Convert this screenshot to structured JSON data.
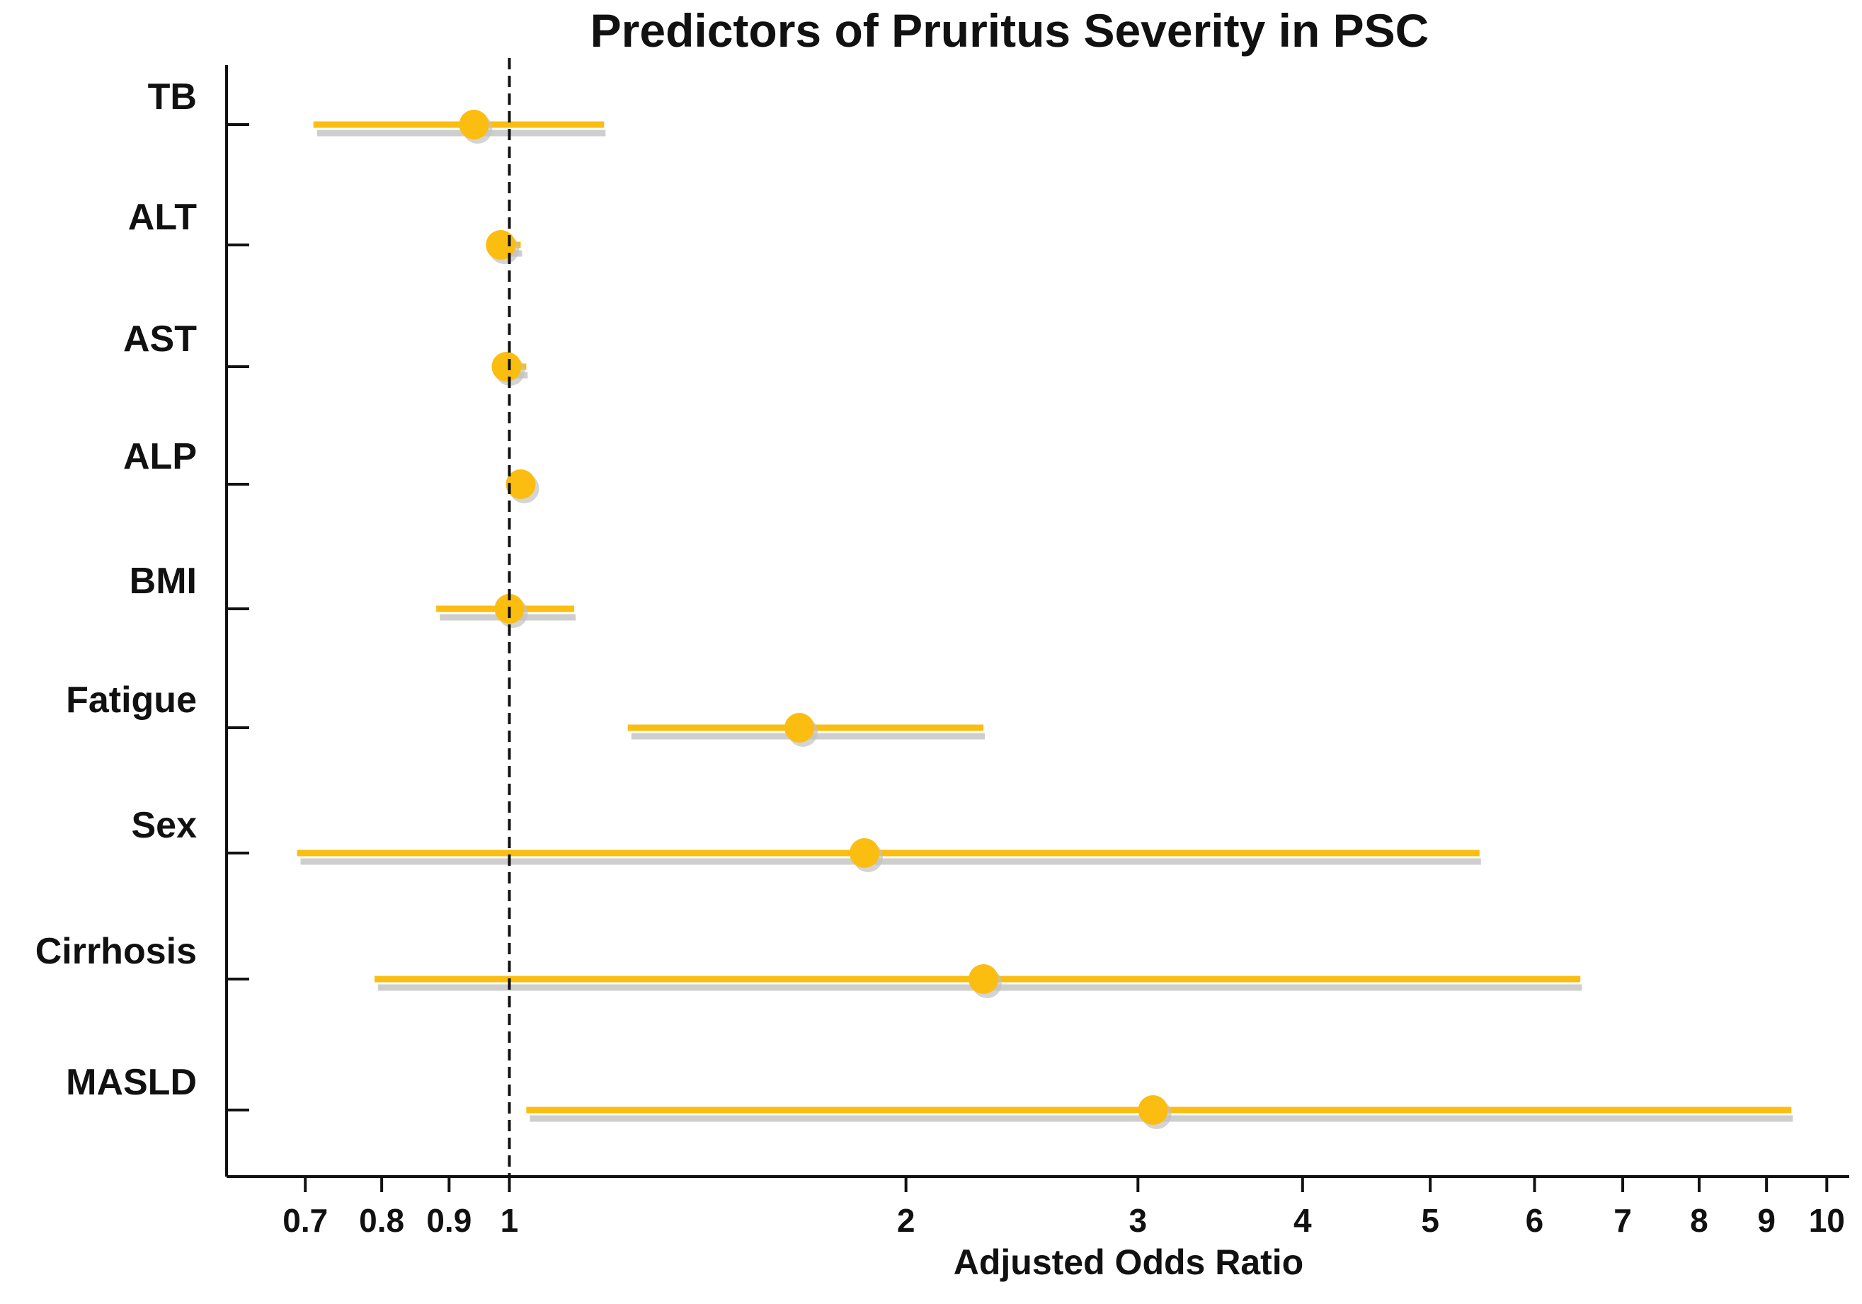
{
  "chart_data": {
    "type": "forest",
    "title": "Predictors of Pruritus Severity in PSC",
    "xlabel": "Adjusted Odds Ratio",
    "ylabel": "",
    "x_scale": "log",
    "xlim": [
      0.61,
      10.4
    ],
    "reference_line": 1,
    "x_ticks": [
      {
        "value": 0.7,
        "label": "0.7"
      },
      {
        "value": 0.8,
        "label": "0.8"
      },
      {
        "value": 0.9,
        "label": "0.9"
      },
      {
        "value": 1,
        "label": "1"
      },
      {
        "value": 2,
        "label": "2"
      },
      {
        "value": 3,
        "label": "3"
      },
      {
        "value": 4,
        "label": "4"
      },
      {
        "value": 5,
        "label": "5"
      },
      {
        "value": 6,
        "label": "6"
      },
      {
        "value": 7,
        "label": "7"
      },
      {
        "value": 8,
        "label": "8"
      },
      {
        "value": 9,
        "label": "9"
      },
      {
        "value": 10,
        "label": "10"
      }
    ],
    "series": [
      {
        "name": "TB",
        "or": 0.94,
        "ci_low": 0.71,
        "ci_high": 1.18
      },
      {
        "name": "ALT",
        "or": 0.985,
        "ci_low": 0.97,
        "ci_high": 1.02
      },
      {
        "name": "AST",
        "or": 0.995,
        "ci_low": 0.98,
        "ci_high": 1.03
      },
      {
        "name": "ALP",
        "or": 1.02,
        "ci_low": 1.01,
        "ci_high": 1.03
      },
      {
        "name": "BMI",
        "or": 1.0,
        "ci_low": 0.88,
        "ci_high": 1.12
      },
      {
        "name": "Fatigue",
        "or": 1.66,
        "ci_low": 1.23,
        "ci_high": 2.29
      },
      {
        "name": "Sex",
        "or": 1.86,
        "ci_low": 0.69,
        "ci_high": 5.45
      },
      {
        "name": "Cirrhosis",
        "or": 2.29,
        "ci_low": 0.79,
        "ci_high": 6.5
      },
      {
        "name": "MASLD",
        "or": 3.08,
        "ci_low": 1.03,
        "ci_high": 9.4
      }
    ],
    "colors": {
      "marker": "#fbbd10",
      "ci_line": "#fbbd10",
      "ci_shadow": "#c2c2c2",
      "axis": "#111111",
      "reference": "#111111"
    }
  }
}
